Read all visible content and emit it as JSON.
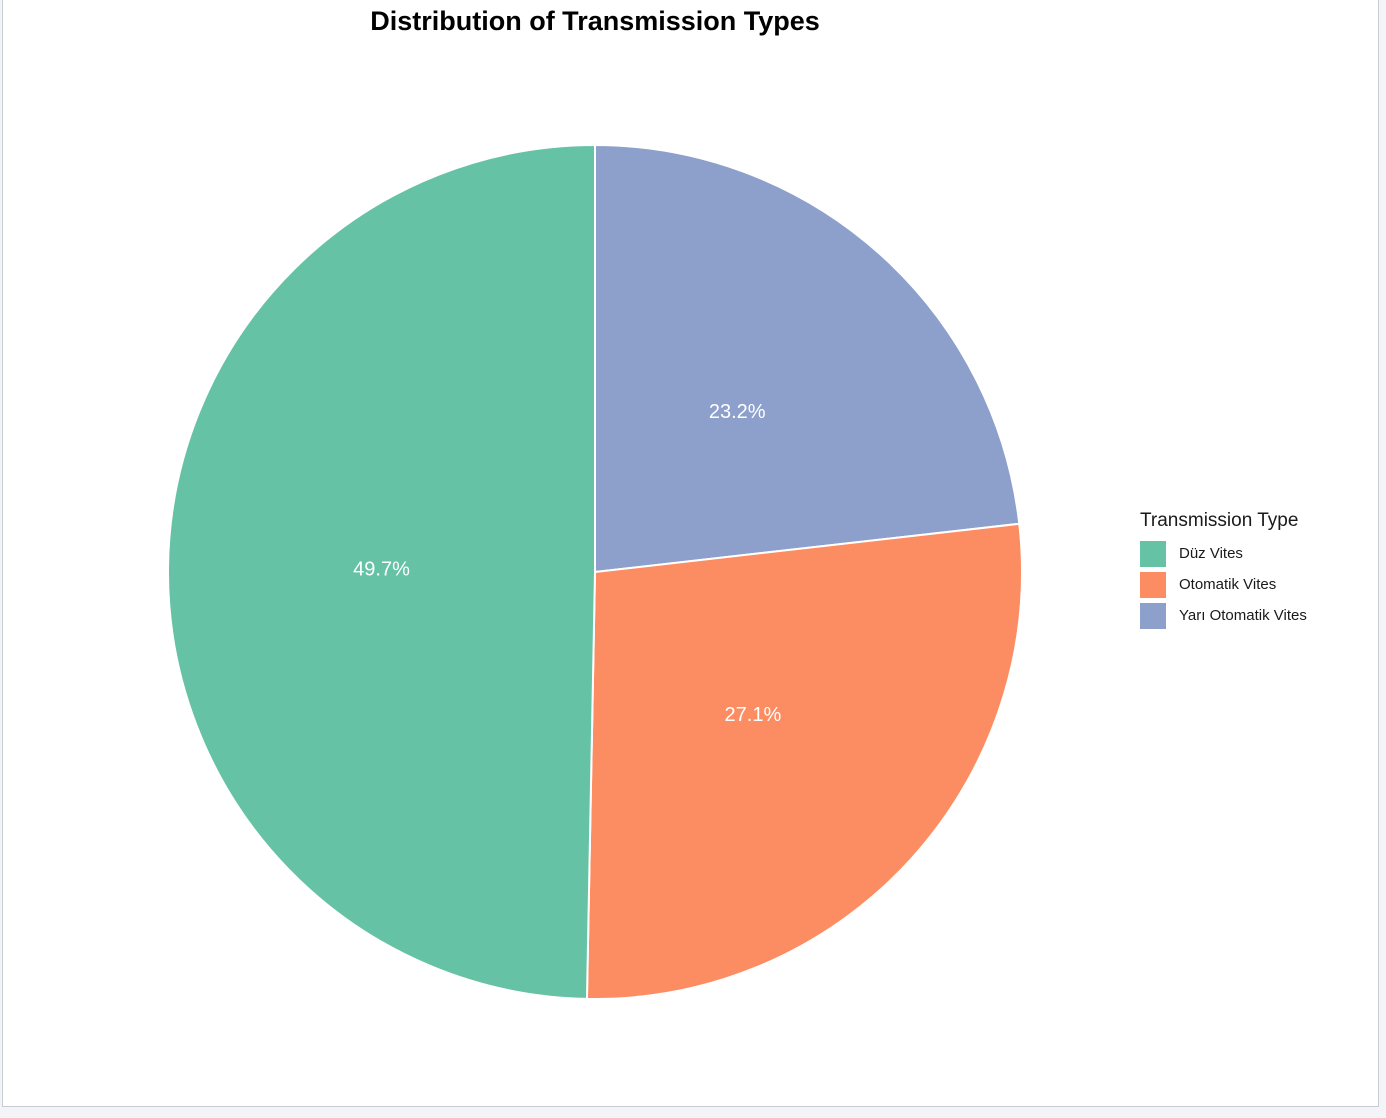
{
  "chart_data": {
    "type": "pie",
    "title": "Distribution of Transmission Types",
    "legend_title": "Transmission Type",
    "legend_position": "right",
    "start_angle": "top, clockwise",
    "slices": [
      {
        "label": "Düz Vites",
        "value": 49.7,
        "display": "49.7%",
        "color": "#66c2a5"
      },
      {
        "label": "Otomatik Vites",
        "value": 27.1,
        "display": "27.1%",
        "color": "#fc8d62"
      },
      {
        "label": "Yarı Otomatik Vites",
        "value": 23.2,
        "display": "23.2%",
        "color": "#8da0cb"
      }
    ],
    "draw_order": [
      "Yarı Otomatik Vites",
      "Otomatik Vites",
      "Düz Vites"
    ],
    "slice_border_color": "#ffffff",
    "label_color": "#ffffff"
  }
}
